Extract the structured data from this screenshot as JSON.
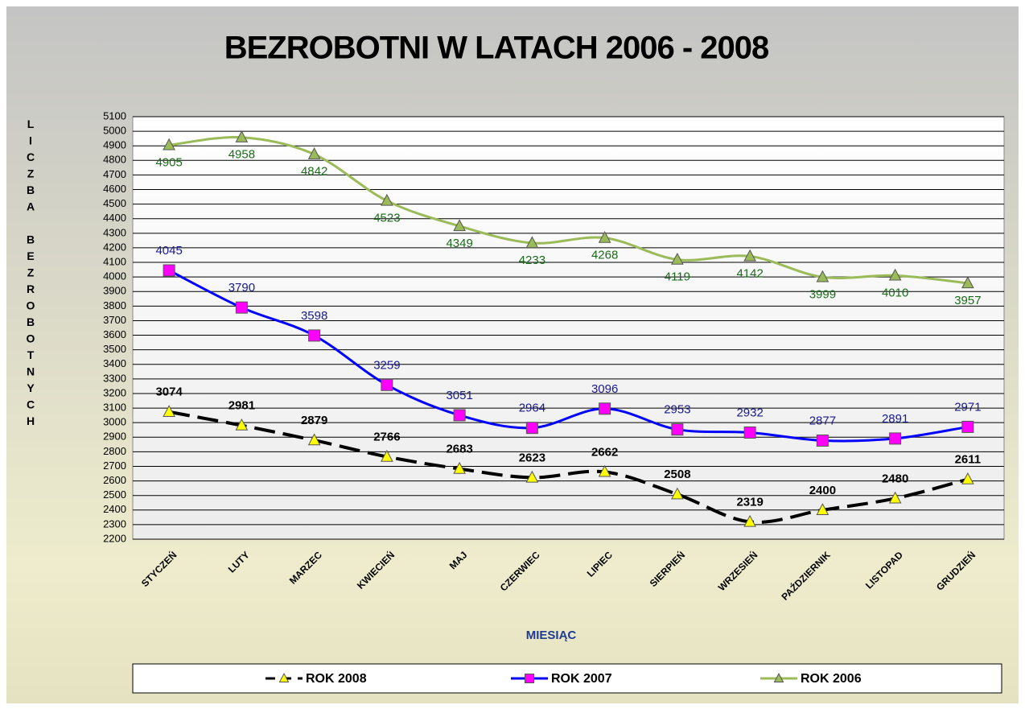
{
  "chart_data": {
    "type": "line",
    "title": "BEZROBOTNI W LATACH 2006 - 2008",
    "x_label": "MIESIĄC",
    "y_label": "LICZBA BEZROBOTNYCH",
    "categories": [
      "STYCZEŃ",
      "LUTY",
      "MARZEC",
      "KWIECIEŃ",
      "MAJ",
      "CZERWIEC",
      "LIPIEC",
      "SIERPIEŃ",
      "WRZESIEŃ",
      "PAŹDZIERNIK",
      "LISTOPAD",
      "GRUDZIEŃ"
    ],
    "series": [
      {
        "name": "ROK 2008",
        "color": "#000000",
        "line_style": "dashed",
        "marker": "triangle",
        "marker_color": "#ffff00",
        "label_color": "#000000",
        "label_position": "above",
        "values": [
          3074,
          2981,
          2879,
          2766,
          2683,
          2623,
          2662,
          2508,
          2319,
          2400,
          2480,
          2611
        ]
      },
      {
        "name": "ROK 2007",
        "color": "#0000ff",
        "line_style": "solid",
        "marker": "square",
        "marker_color": "#ff00ff",
        "label_color": "#1a1a8c",
        "label_position": "above",
        "values": [
          4045,
          3790,
          3598,
          3259,
          3051,
          2964,
          3096,
          2953,
          2932,
          2877,
          2891,
          2971
        ]
      },
      {
        "name": "ROK 2006",
        "color": "#9bbb59",
        "line_style": "solid",
        "marker": "triangle",
        "marker_color": "#9bbb59",
        "label_color": "#1b6b1b",
        "label_position": "below",
        "values": [
          4905,
          4958,
          4842,
          4523,
          4349,
          4233,
          4268,
          4119,
          4142,
          3999,
          4010,
          3957
        ]
      }
    ],
    "ylim": [
      2200,
      5100
    ],
    "yticks": [
      2200,
      2300,
      2400,
      2500,
      2600,
      2700,
      2800,
      2900,
      3000,
      3100,
      3200,
      3300,
      3400,
      3500,
      3600,
      3700,
      3800,
      3900,
      4000,
      4100,
      4200,
      4300,
      4400,
      4500,
      4600,
      4700,
      4800,
      4900,
      5000,
      5100
    ],
    "grid": true,
    "legend": "bottom"
  }
}
